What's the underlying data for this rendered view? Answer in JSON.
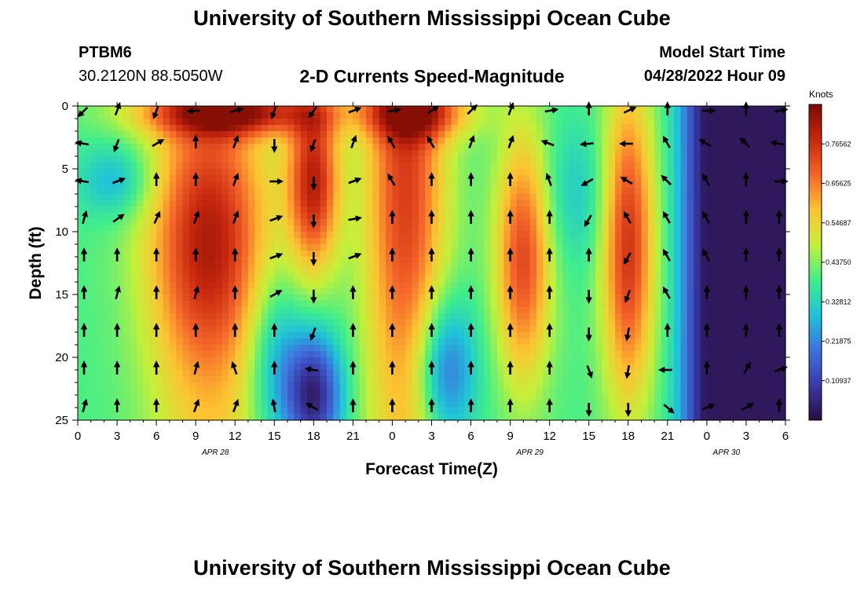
{
  "header": {
    "title": "University of Southern Mississippi Ocean Cube",
    "station": "PTBM6",
    "coords": "30.2120N  88.5050W",
    "subtitle": "2-D Currents Speed-Magnitude",
    "model_start_label": "Model Start Time",
    "model_start_value": "04/28/2022 Hour 09"
  },
  "footer": {
    "title": "University of Southern Mississippi Ocean Cube"
  },
  "colors": {
    "background": "#ffffff",
    "colormap": [
      "#2a0b3e",
      "#3b3aa8",
      "#3e72de",
      "#1fc3d8",
      "#42ee8a",
      "#c5f03a",
      "#fdc332",
      "#f4652a",
      "#c7270e",
      "#7a0a04"
    ]
  },
  "chart_data": {
    "type": "heatmap",
    "title": "2-D Currents Speed-Magnitude",
    "xlabel": "Forecast Time(Z)",
    "ylabel": "Depth (ft)",
    "colorbar_label": "Knots",
    "x_tick_labels": [
      "0",
      "3",
      "6",
      "9",
      "12",
      "15",
      "18",
      "21",
      "0",
      "3",
      "6",
      "9",
      "12",
      "15",
      "18",
      "21",
      "0",
      "3",
      "6"
    ],
    "date_labels": [
      {
        "text": "APR 28",
        "at_tick": 3.5
      },
      {
        "text": "APR 29",
        "at_tick": 11.5
      },
      {
        "text": "APR 30",
        "at_tick": 16.5
      }
    ],
    "y_ticks": [
      0,
      5,
      10,
      15,
      20,
      25
    ],
    "ylim": [
      25,
      0
    ],
    "x_range_hours": [
      0,
      54
    ],
    "colorbar_ticks": [
      "0.76562",
      "0.65625",
      "0.54687",
      "0.43750",
      "0.32812",
      "0.21875",
      "0.10937"
    ],
    "colorbar_range": [
      0.0,
      0.875
    ],
    "arrow_hours": [
      0,
      3,
      6,
      9,
      12,
      15,
      18,
      21,
      24,
      27,
      30,
      33,
      36,
      39,
      42,
      45,
      48,
      51,
      54
    ],
    "arrow_depths": [
      0,
      3,
      6,
      9,
      12,
      15,
      18,
      21,
      24
    ],
    "arrow_headings": [
      [
        225,
        20,
        200,
        265,
        75,
        200,
        215,
        70,
        80,
        55,
        45,
        20,
        80,
        0,
        65,
        0,
        90,
        0,
        80
      ],
      [
        280,
        200,
        60,
        0,
        20,
        180,
        200,
        20,
        330,
        330,
        20,
        20,
        290,
        265,
        270,
        330,
        300,
        315,
        280
      ],
      [
        280,
        70,
        0,
        0,
        20,
        90,
        180,
        70,
        330,
        0,
        0,
        0,
        340,
        240,
        300,
        315,
        330,
        0,
        90
      ],
      [
        15,
        55,
        25,
        20,
        20,
        70,
        180,
        80,
        0,
        0,
        0,
        0,
        0,
        210,
        330,
        330,
        330,
        0,
        0
      ],
      [
        0,
        0,
        0,
        0,
        0,
        70,
        180,
        70,
        0,
        0,
        0,
        0,
        0,
        0,
        210,
        330,
        330,
        0,
        0
      ],
      [
        0,
        15,
        0,
        15,
        0,
        60,
        180,
        0,
        0,
        0,
        0,
        0,
        0,
        180,
        200,
        330,
        0,
        0,
        0
      ],
      [
        0,
        0,
        0,
        0,
        0,
        0,
        200,
        0,
        0,
        0,
        0,
        0,
        0,
        180,
        190,
        0,
        0,
        0,
        0
      ],
      [
        0,
        0,
        0,
        15,
        340,
        0,
        280,
        0,
        0,
        0,
        0,
        0,
        0,
        160,
        190,
        270,
        0,
        30,
        70
      ],
      [
        15,
        0,
        0,
        20,
        20,
        350,
        300,
        0,
        0,
        0,
        0,
        0,
        0,
        180,
        180,
        130,
        70,
        60,
        0
      ]
    ]
  }
}
